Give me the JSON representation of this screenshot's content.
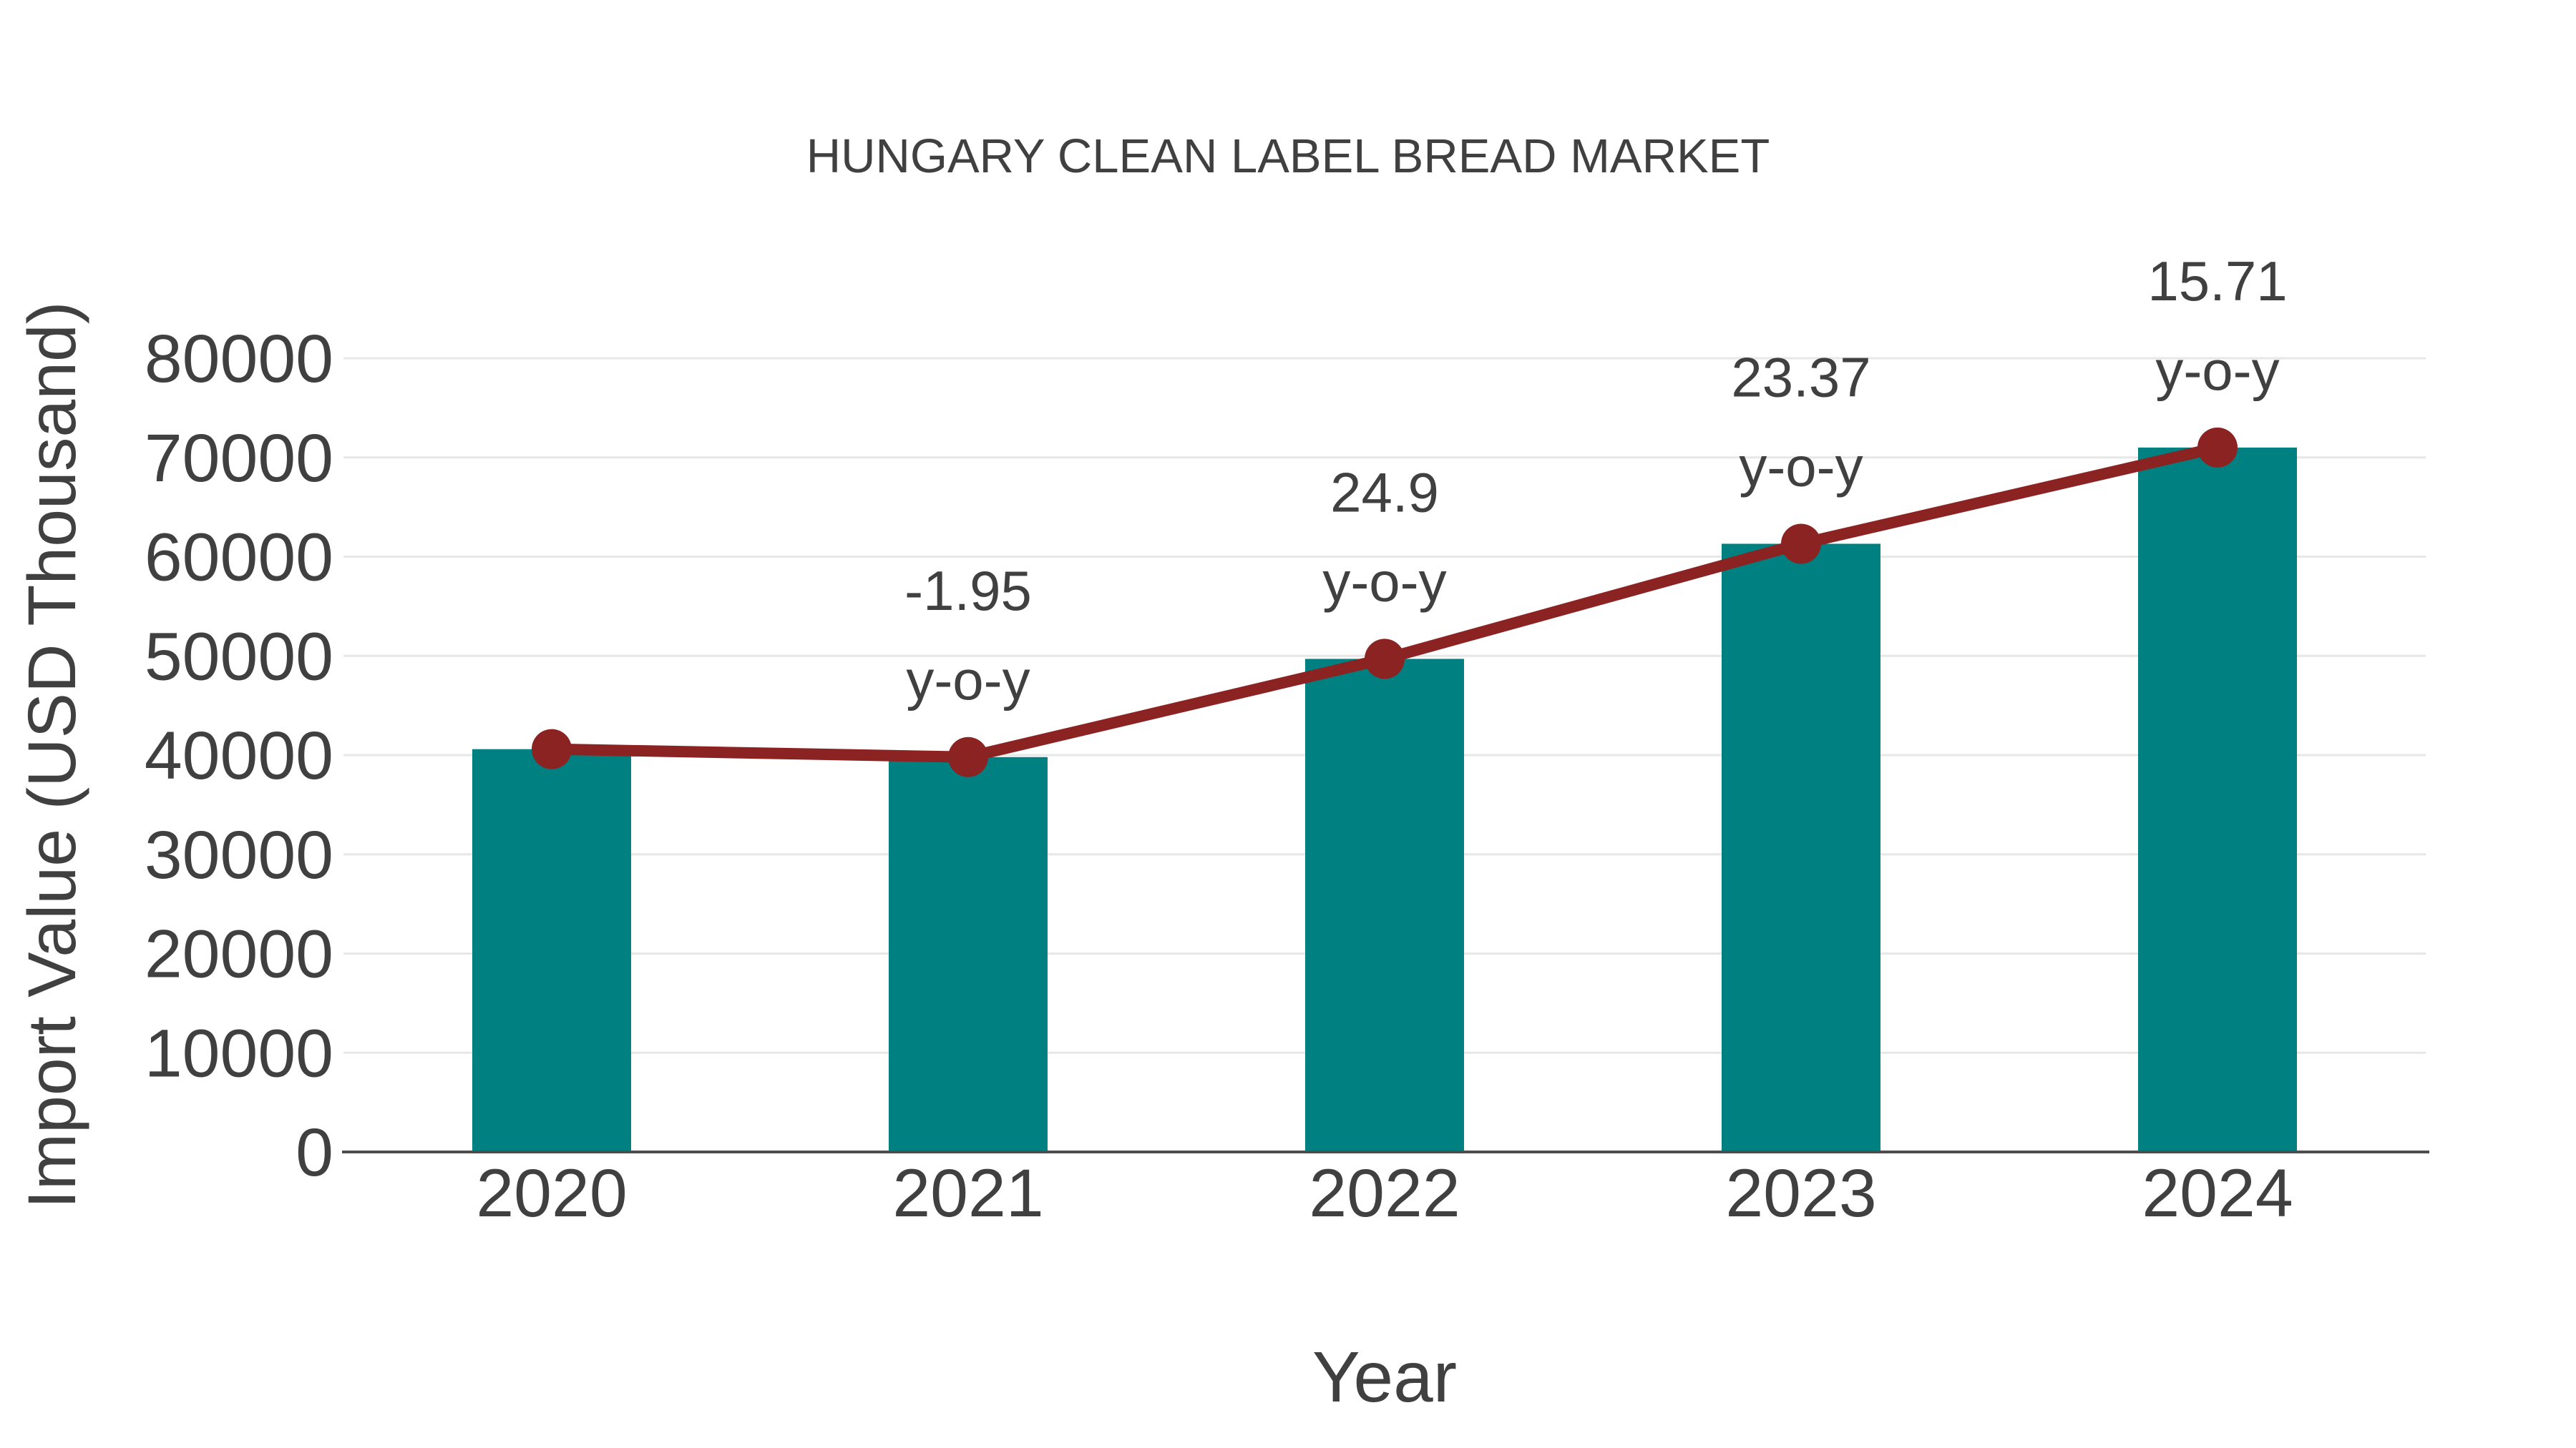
{
  "page": {
    "background": "#ffffff"
  },
  "chart_data": {
    "type": "bar",
    "combo": "bar+line",
    "title": "HUNGARY CLEAN LABEL BREAD MARKET",
    "xlabel": "Year",
    "ylabel": "Import Value (USD Thousand)",
    "categories": [
      "2020",
      "2021",
      "2022",
      "2023",
      "2024"
    ],
    "series": [
      {
        "name": "Import Value (USD Thousand)",
        "type": "bar",
        "color": "#008080",
        "values": [
          40600,
          39800,
          49700,
          61300,
          71000
        ]
      },
      {
        "name": "Import Value trend line",
        "type": "line",
        "color": "#8B2323",
        "values": [
          40600,
          39800,
          49700,
          61300,
          71000
        ]
      }
    ],
    "annotations": [
      {
        "category": "2021",
        "value": "-1.95",
        "suffix": "y-o-y"
      },
      {
        "category": "2022",
        "value": "24.9",
        "suffix": "y-o-y"
      },
      {
        "category": "2023",
        "value": "23.37",
        "suffix": "y-o-y"
      },
      {
        "category": "2024",
        "value": "15.71",
        "suffix": "y-o-y"
      }
    ],
    "ylim": [
      0,
      80000
    ],
    "ytick_step": 10000,
    "ytick_labels": [
      "0",
      "10000",
      "20000",
      "30000",
      "40000",
      "50000",
      "60000",
      "70000",
      "80000"
    ],
    "grid": true,
    "legend_position": "none",
    "colors": {
      "bar": "#008080",
      "line": "#8B2323",
      "text": "#404040",
      "gridline": "#E7E7E7",
      "axis_line": "#4D4D4D",
      "background": "#FFFFFF"
    }
  }
}
